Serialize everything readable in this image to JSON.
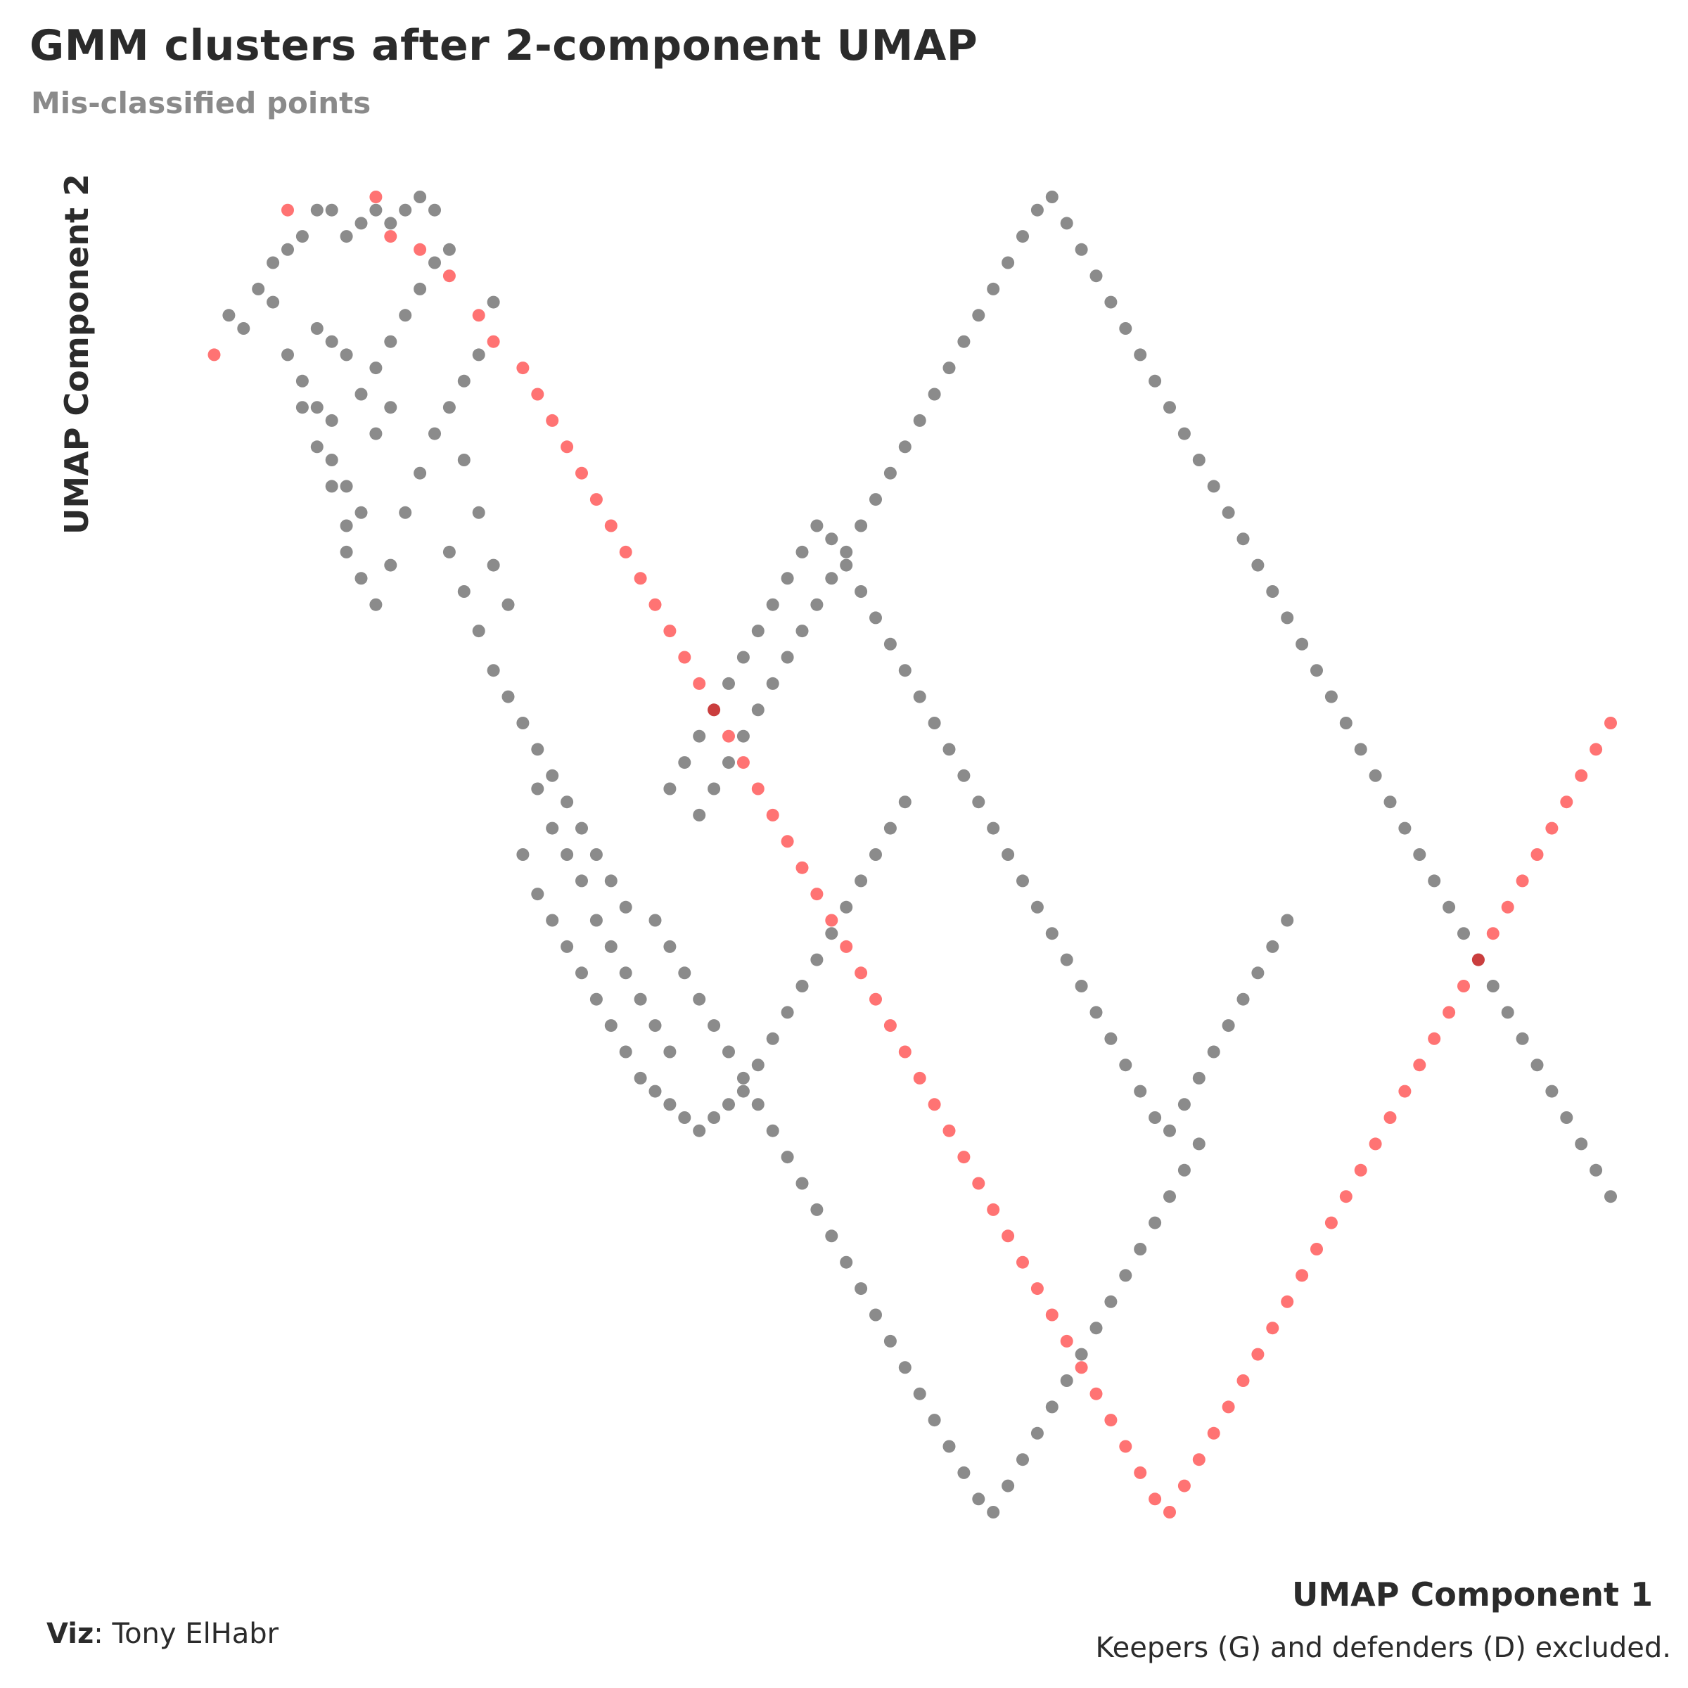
{
  "header": {
    "title": "GMM clusters after 2-component UMAP",
    "subtitle": "Mis-classified points"
  },
  "footer": {
    "viz_label": "Viz",
    "viz_author": ": Tony ElHabr",
    "caption": "Keepers (G) and defenders (D) excluded."
  },
  "colors": {
    "correct": "#2b2b2b",
    "misclassified": "#ff0000"
  },
  "chart_data": {
    "type": "scatter",
    "title": "GMM clusters after 2-component UMAP",
    "subtitle": "Mis-classified points",
    "xlabel": "UMAP Component 1",
    "ylabel": "UMAP Component 2",
    "grid": false,
    "legend": "none",
    "tick_labels": false,
    "xlim": [
      0,
      100
    ],
    "ylim": [
      0,
      100
    ],
    "point_opacity": 0.55,
    "series": [
      {
        "status": "correct",
        "color": "#2b2b2b",
        "points": [
          [
            6,
            91
          ],
          [
            7,
            90
          ],
          [
            8,
            93
          ],
          [
            9,
            92
          ],
          [
            9,
            95
          ],
          [
            10,
            96
          ],
          [
            11,
            97
          ],
          [
            12,
            99
          ],
          [
            13,
            99
          ],
          [
            14,
            97
          ],
          [
            15,
            98
          ],
          [
            16,
            99
          ],
          [
            17,
            98
          ],
          [
            18,
            99
          ],
          [
            19,
            100
          ],
          [
            20,
            99
          ],
          [
            12,
            90
          ],
          [
            13,
            89
          ],
          [
            14,
            88
          ],
          [
            11,
            86
          ],
          [
            12,
            84
          ],
          [
            13,
            83
          ],
          [
            15,
            85
          ],
          [
            16,
            87
          ],
          [
            17,
            89
          ],
          [
            18,
            91
          ],
          [
            19,
            93
          ],
          [
            20,
            95
          ],
          [
            21,
            96
          ],
          [
            13,
            80
          ],
          [
            14,
            78
          ],
          [
            15,
            76
          ],
          [
            16,
            82
          ],
          [
            17,
            84
          ],
          [
            14,
            73
          ],
          [
            15,
            71
          ],
          [
            16,
            69
          ],
          [
            17,
            72
          ],
          [
            18,
            76
          ],
          [
            19,
            79
          ],
          [
            20,
            82
          ],
          [
            21,
            84
          ],
          [
            22,
            86
          ],
          [
            23,
            88
          ],
          [
            24,
            92
          ],
          [
            10,
            88
          ],
          [
            11,
            84
          ],
          [
            12,
            81
          ],
          [
            13,
            78
          ],
          [
            14,
            75
          ],
          [
            22,
            80
          ],
          [
            23,
            76
          ],
          [
            24,
            72
          ],
          [
            25,
            69
          ],
          [
            21,
            73
          ],
          [
            22,
            70
          ],
          [
            23,
            67
          ],
          [
            24,
            64
          ],
          [
            25,
            62
          ],
          [
            26,
            60
          ],
          [
            27,
            58
          ],
          [
            28,
            56
          ],
          [
            29,
            54
          ],
          [
            30,
            52
          ],
          [
            31,
            50
          ],
          [
            32,
            48
          ],
          [
            33,
            46
          ],
          [
            27,
            55
          ],
          [
            28,
            52
          ],
          [
            29,
            50
          ],
          [
            30,
            48
          ],
          [
            31,
            45
          ],
          [
            32,
            43
          ],
          [
            33,
            41
          ],
          [
            34,
            39
          ],
          [
            35,
            37
          ],
          [
            36,
            35
          ],
          [
            26,
            50
          ],
          [
            27,
            47
          ],
          [
            28,
            45
          ],
          [
            29,
            43
          ],
          [
            30,
            41
          ],
          [
            31,
            39
          ],
          [
            32,
            37
          ],
          [
            33,
            35
          ],
          [
            34,
            33
          ],
          [
            35,
            32
          ],
          [
            36,
            31
          ],
          [
            37,
            30
          ],
          [
            38,
            29
          ],
          [
            39,
            30
          ],
          [
            40,
            31
          ],
          [
            41,
            32
          ],
          [
            42,
            34
          ],
          [
            43,
            36
          ],
          [
            44,
            38
          ],
          [
            45,
            40
          ],
          [
            46,
            42
          ],
          [
            47,
            44
          ],
          [
            48,
            46
          ],
          [
            49,
            48
          ],
          [
            50,
            50
          ],
          [
            51,
            52
          ],
          [
            52,
            54
          ],
          [
            36,
            55
          ],
          [
            37,
            57
          ],
          [
            38,
            59
          ],
          [
            39,
            61
          ],
          [
            40,
            63
          ],
          [
            41,
            65
          ],
          [
            42,
            67
          ],
          [
            43,
            69
          ],
          [
            44,
            71
          ],
          [
            45,
            73
          ],
          [
            46,
            75
          ],
          [
            47,
            74
          ],
          [
            48,
            72
          ],
          [
            49,
            70
          ],
          [
            50,
            68
          ],
          [
            51,
            66
          ],
          [
            52,
            64
          ],
          [
            53,
            62
          ],
          [
            54,
            60
          ],
          [
            55,
            58
          ],
          [
            56,
            56
          ],
          [
            57,
            54
          ],
          [
            58,
            52
          ],
          [
            59,
            50
          ],
          [
            60,
            48
          ],
          [
            61,
            46
          ],
          [
            62,
            44
          ],
          [
            63,
            42
          ],
          [
            64,
            40
          ],
          [
            65,
            38
          ],
          [
            66,
            36
          ],
          [
            67,
            34
          ],
          [
            68,
            32
          ],
          [
            69,
            30
          ],
          [
            70,
            29
          ],
          [
            71,
            31
          ],
          [
            72,
            33
          ],
          [
            73,
            35
          ],
          [
            74,
            37
          ],
          [
            75,
            39
          ],
          [
            76,
            41
          ],
          [
            77,
            43
          ],
          [
            78,
            45
          ],
          [
            35,
            45
          ],
          [
            36,
            43
          ],
          [
            37,
            41
          ],
          [
            38,
            39
          ],
          [
            39,
            37
          ],
          [
            40,
            35
          ],
          [
            41,
            33
          ],
          [
            42,
            31
          ],
          [
            43,
            29
          ],
          [
            44,
            27
          ],
          [
            45,
            25
          ],
          [
            46,
            23
          ],
          [
            47,
            21
          ],
          [
            48,
            19
          ],
          [
            49,
            17
          ],
          [
            50,
            15
          ],
          [
            51,
            13
          ],
          [
            52,
            11
          ],
          [
            53,
            9
          ],
          [
            54,
            7
          ],
          [
            55,
            5
          ],
          [
            56,
            3
          ],
          [
            57,
            1
          ],
          [
            58,
            0
          ],
          [
            59,
            2
          ],
          [
            60,
            4
          ],
          [
            61,
            6
          ],
          [
            62,
            8
          ],
          [
            63,
            10
          ],
          [
            64,
            12
          ],
          [
            65,
            14
          ],
          [
            66,
            16
          ],
          [
            67,
            18
          ],
          [
            68,
            20
          ],
          [
            69,
            22
          ],
          [
            70,
            24
          ],
          [
            71,
            26
          ],
          [
            72,
            28
          ],
          [
            38,
            53
          ],
          [
            39,
            55
          ],
          [
            40,
            57
          ],
          [
            41,
            59
          ],
          [
            42,
            61
          ],
          [
            43,
            63
          ],
          [
            44,
            65
          ],
          [
            45,
            67
          ],
          [
            46,
            69
          ],
          [
            47,
            71
          ],
          [
            48,
            73
          ],
          [
            49,
            75
          ],
          [
            50,
            77
          ],
          [
            51,
            79
          ],
          [
            52,
            81
          ],
          [
            53,
            83
          ],
          [
            54,
            85
          ],
          [
            55,
            87
          ],
          [
            56,
            89
          ],
          [
            57,
            91
          ],
          [
            58,
            93
          ],
          [
            59,
            95
          ],
          [
            60,
            97
          ],
          [
            61,
            99
          ],
          [
            62,
            100
          ],
          [
            63,
            98
          ],
          [
            64,
            96
          ],
          [
            65,
            94
          ],
          [
            66,
            92
          ],
          [
            67,
            90
          ],
          [
            68,
            88
          ],
          [
            69,
            86
          ],
          [
            70,
            84
          ],
          [
            71,
            82
          ],
          [
            72,
            80
          ],
          [
            73,
            78
          ],
          [
            74,
            76
          ],
          [
            75,
            74
          ],
          [
            76,
            72
          ],
          [
            77,
            70
          ],
          [
            78,
            68
          ],
          [
            79,
            66
          ],
          [
            80,
            64
          ],
          [
            81,
            62
          ],
          [
            82,
            60
          ],
          [
            83,
            58
          ],
          [
            84,
            56
          ],
          [
            85,
            54
          ],
          [
            86,
            52
          ],
          [
            87,
            50
          ],
          [
            88,
            48
          ],
          [
            89,
            46
          ],
          [
            90,
            44
          ],
          [
            91,
            42
          ],
          [
            92,
            40
          ],
          [
            93,
            38
          ],
          [
            94,
            36
          ],
          [
            95,
            34
          ],
          [
            96,
            32
          ],
          [
            97,
            30
          ],
          [
            98,
            28
          ],
          [
            99,
            26
          ],
          [
            100,
            24
          ]
        ]
      },
      {
        "status": "misclassified",
        "color": "#ff0000",
        "points": [
          [
            5,
            88
          ],
          [
            10,
            99
          ],
          [
            16,
            100
          ],
          [
            17,
            97
          ],
          [
            19,
            96
          ],
          [
            21,
            94
          ],
          [
            23,
            91
          ],
          [
            24,
            89
          ],
          [
            26,
            87
          ],
          [
            27,
            85
          ],
          [
            28,
            83
          ],
          [
            29,
            81
          ],
          [
            30,
            79
          ],
          [
            31,
            77
          ],
          [
            32,
            75
          ],
          [
            33,
            73
          ],
          [
            34,
            71
          ],
          [
            35,
            69
          ],
          [
            36,
            67
          ],
          [
            37,
            65
          ],
          [
            38,
            63
          ],
          [
            39,
            61
          ],
          [
            40,
            59
          ],
          [
            41,
            57
          ],
          [
            42,
            55
          ],
          [
            43,
            53
          ],
          [
            44,
            51
          ],
          [
            45,
            49
          ],
          [
            46,
            47
          ],
          [
            47,
            45
          ],
          [
            48,
            43
          ],
          [
            49,
            41
          ],
          [
            50,
            39
          ],
          [
            51,
            37
          ],
          [
            52,
            35
          ],
          [
            53,
            33
          ],
          [
            54,
            31
          ],
          [
            55,
            29
          ],
          [
            56,
            27
          ],
          [
            57,
            25
          ],
          [
            58,
            23
          ],
          [
            59,
            21
          ],
          [
            60,
            19
          ],
          [
            61,
            17
          ],
          [
            62,
            15
          ],
          [
            63,
            13
          ],
          [
            64,
            11
          ],
          [
            65,
            9
          ],
          [
            66,
            7
          ],
          [
            67,
            5
          ],
          [
            68,
            3
          ],
          [
            69,
            1
          ],
          [
            70,
            0
          ],
          [
            71,
            2
          ],
          [
            72,
            4
          ],
          [
            73,
            6
          ],
          [
            74,
            8
          ],
          [
            75,
            10
          ],
          [
            76,
            12
          ],
          [
            77,
            14
          ],
          [
            78,
            16
          ],
          [
            79,
            18
          ],
          [
            80,
            20
          ],
          [
            81,
            22
          ],
          [
            82,
            24
          ],
          [
            83,
            26
          ],
          [
            84,
            28
          ],
          [
            85,
            30
          ],
          [
            86,
            32
          ],
          [
            87,
            34
          ],
          [
            88,
            36
          ],
          [
            89,
            38
          ],
          [
            90,
            40
          ],
          [
            91,
            42
          ],
          [
            92,
            44
          ],
          [
            93,
            46
          ],
          [
            94,
            48
          ],
          [
            95,
            50
          ],
          [
            96,
            52
          ],
          [
            97,
            54
          ],
          [
            98,
            56
          ],
          [
            99,
            58
          ],
          [
            100,
            60
          ]
        ]
      }
    ]
  }
}
